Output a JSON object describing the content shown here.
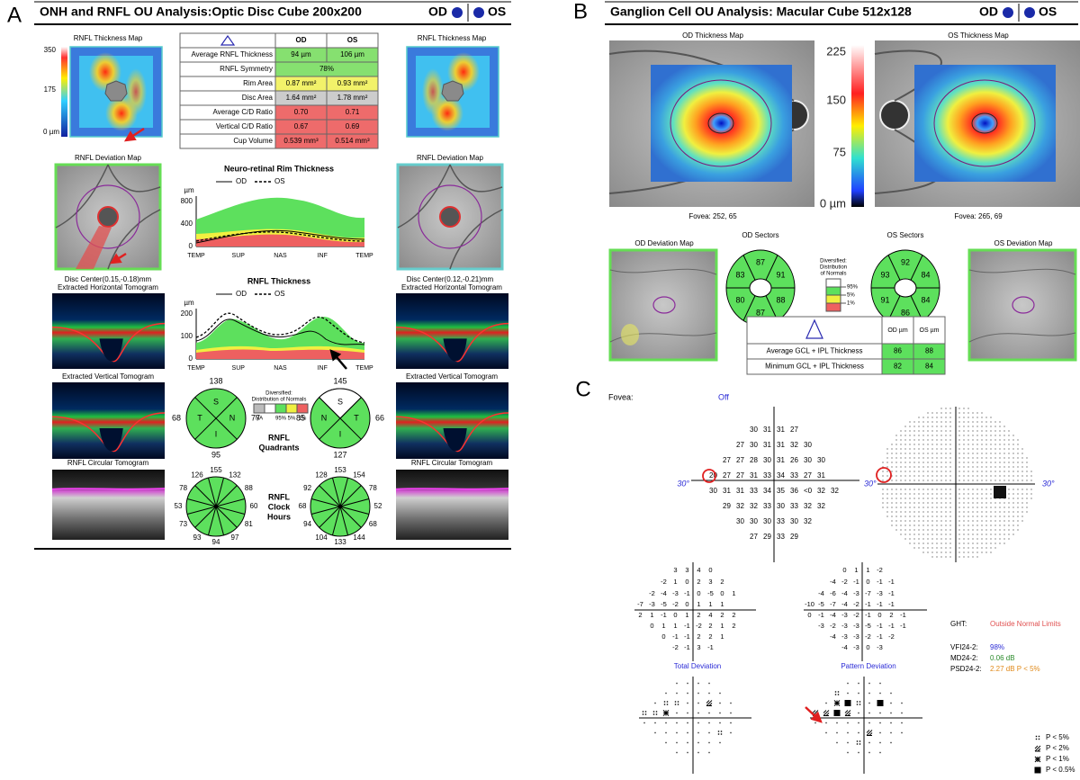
{
  "panel_labels": {
    "a": "A",
    "b": "B",
    "c": "C"
  },
  "onh": {
    "title": "ONH and RNFL OU Analysis:Optic Disc Cube 200x200",
    "eyes": [
      "OD",
      "OS"
    ],
    "thickness_map": "RNFL Thickness Map",
    "scale": [
      "350",
      "175",
      "0 µm"
    ],
    "table": {
      "columns": [
        "OD",
        "OS"
      ],
      "rows": [
        {
          "label": "Average RNFL Thickness",
          "od": "94 µm",
          "os": "106 µm",
          "color": "#86e070"
        },
        {
          "label": "RNFL Symmetry",
          "value": "78%",
          "color": "#86e070"
        },
        {
          "label": "Rim Area",
          "od": "0.87 mm²",
          "os": "0.93 mm²",
          "color": "#f2f26a"
        },
        {
          "label": "Disc Area",
          "od": "1.64 mm²",
          "os": "1.78 mm²",
          "color": "#cccccc"
        },
        {
          "label": "Average C/D Ratio",
          "od": "0.70",
          "os": "0.71",
          "color": "#ee6b6b"
        },
        {
          "label": "Vertical C/D Ratio",
          "od": "0.67",
          "os": "0.69",
          "color": "#ee6b6b"
        },
        {
          "label": "Cup Volume",
          "od": "0.539 mm³",
          "os": "0.514 mm³",
          "color": "#ee6b6b"
        }
      ]
    },
    "deviation_map": "RNFL Deviation Map",
    "rim_chart": {
      "title": "Neuro-retinal Rim Thickness",
      "legend": [
        "OD",
        "OS"
      ],
      "unit": "µm",
      "axis_labels": [
        "800",
        "400",
        "0"
      ],
      "sectors": [
        "TEMP",
        "SUP",
        "NAS",
        "INF",
        "TEMP"
      ]
    },
    "disc_center": {
      "od": "Disc Center(0.15,-0.18)mm",
      "os": "Disc Center(0.12,-0.21)mm"
    },
    "horizontal_tomogram": "Extracted Horizontal Tomogram",
    "rnfl_chart": {
      "title": "RNFL Thickness",
      "legend": [
        "OD",
        "OS"
      ],
      "unit": "µm",
      "axis_labels": [
        "200",
        "100",
        "0"
      ],
      "sectors": [
        "TEMP",
        "SUP",
        "NAS",
        "INF",
        "TEMP"
      ]
    },
    "vertical_tomogram": "Extracted Vertical Tomogram",
    "quadrants": {
      "title": [
        "RNFL",
        "Quadrants"
      ],
      "od": {
        "values": [
          138,
          77,
          95,
          68
        ],
        "labels": [
          "S",
          "N",
          "I",
          "T"
        ]
      },
      "os": {
        "values": [
          145,
          66,
          127,
          85
        ],
        "labels": [
          "S",
          "T",
          "I",
          "N"
        ]
      }
    },
    "normals_legend": {
      "title": [
        "Diversified:",
        "Distribution of Normals"
      ],
      "labels": [
        "NA",
        "95%",
        "5%",
        "1%"
      ]
    },
    "clock_hours": {
      "title": [
        "RNFL",
        "Clock",
        "Hours"
      ],
      "od": [
        155,
        132,
        88,
        60,
        81,
        97,
        94,
        93,
        73,
        53,
        78,
        126
      ],
      "os": [
        153,
        154,
        78,
        52,
        68,
        144,
        133,
        104,
        94,
        68,
        92,
        128
      ]
    },
    "circular_tomogram": "RNFL Circular Tomogram"
  },
  "gcl": {
    "title": "Ganglion Cell OU Analysis: Macular Cube 512x128",
    "eyes": [
      "OD",
      "OS"
    ],
    "maps": [
      "OD Thickness Map",
      "OS Thickness Map"
    ],
    "scale": [
      "225",
      "150",
      "75",
      "0 µm"
    ],
    "fovea": [
      "Fovea: 252, 65",
      "Fovea: 265, 69"
    ],
    "deviation_maps": [
      "OD Deviation Map",
      "OS Deviation Map"
    ],
    "sectors": {
      "titles": [
        "OD Sectors",
        "OS Sectors"
      ],
      "od": [
        87,
        91,
        88,
        87,
        80,
        83
      ],
      "os": [
        92,
        84,
        84,
        86,
        91,
        93
      ]
    },
    "normals_legend": {
      "title": [
        "Diversified:",
        "Distribution",
        "of Normals"
      ],
      "labels": [
        "95%",
        "5%",
        "1%"
      ]
    },
    "table": {
      "columns": [
        "OD µm",
        "OS µm"
      ],
      "rows": [
        {
          "label": "Average GCL + IPL Thickness",
          "od": 86,
          "os": 88
        },
        {
          "label": "Minimum GCL + IPL Thickness",
          "od": 82,
          "os": 84
        }
      ]
    }
  },
  "vf": {
    "fovea_label": "Fovea:",
    "fovea": "Off",
    "degree": "30°",
    "threshold": [
      [
        30,
        31,
        31,
        27
      ],
      [
        27,
        30,
        31,
        31,
        32,
        30
      ],
      [
        27,
        27,
        28,
        30,
        31,
        26,
        30,
        30
      ],
      [
        20,
        27,
        27,
        31,
        33,
        34,
        33,
        27,
        31
      ],
      [
        30,
        31,
        31,
        33,
        34,
        35,
        36,
        "<0",
        32,
        32
      ],
      [
        29,
        32,
        32,
        33,
        30,
        33,
        32,
        32
      ],
      [
        30,
        30,
        30,
        33,
        30,
        32
      ],
      [
        27,
        29,
        33,
        29
      ]
    ],
    "total_deviation": {
      "title": "Total Deviation",
      "rows": [
        [
          3,
          3,
          4,
          0
        ],
        [
          -2,
          1,
          0,
          2,
          3,
          2
        ],
        [
          -2,
          -4,
          -3,
          -1,
          0,
          -5,
          0,
          1
        ],
        [
          -7,
          -3,
          -5,
          -2,
          0,
          1,
          1,
          1
        ],
        [
          2,
          1,
          -1,
          0,
          1,
          2,
          4,
          2,
          2
        ],
        [
          0,
          1,
          1,
          -1,
          -2,
          2,
          1,
          2
        ],
        [
          0,
          -1,
          -1,
          2,
          2,
          1
        ],
        [
          -2,
          -1,
          3,
          -1
        ]
      ]
    },
    "pattern_deviation": {
      "title": "Pattern Deviation",
      "rows": [
        [
          0,
          1,
          1,
          -2
        ],
        [
          -4,
          -2,
          -1,
          0,
          -1,
          -1
        ],
        [
          -4,
          -6,
          -4,
          -3,
          -7,
          -3,
          -1
        ],
        [
          -10,
          -5,
          -7,
          -4,
          -2,
          -1,
          -1,
          -1
        ],
        [
          0,
          -1,
          -4,
          -3,
          -2,
          -1,
          0,
          2,
          -1
        ],
        [
          -3,
          -2,
          -3,
          -3,
          -5,
          -1,
          -1,
          -1
        ],
        [
          -4,
          -3,
          -3,
          -2,
          -1,
          -2
        ],
        [
          -4,
          -3,
          0,
          -3
        ]
      ]
    },
    "ght": {
      "label": "GHT:",
      "value": "Outside Normal Limits"
    },
    "indices": [
      {
        "label": "VFI24-2:",
        "value": "98%",
        "color": "#2b2bd6"
      },
      {
        "label": "MD24-2:",
        "value": "0.06 dB",
        "color": "#2a8a2a"
      },
      {
        "label": "PSD24-2:",
        "value": "2.27 dB P < 5%",
        "color": "#e08a1a"
      }
    ],
    "legend": [
      "P < 5%",
      "P < 2%",
      "P < 1%",
      "P < 0.5%"
    ]
  }
}
